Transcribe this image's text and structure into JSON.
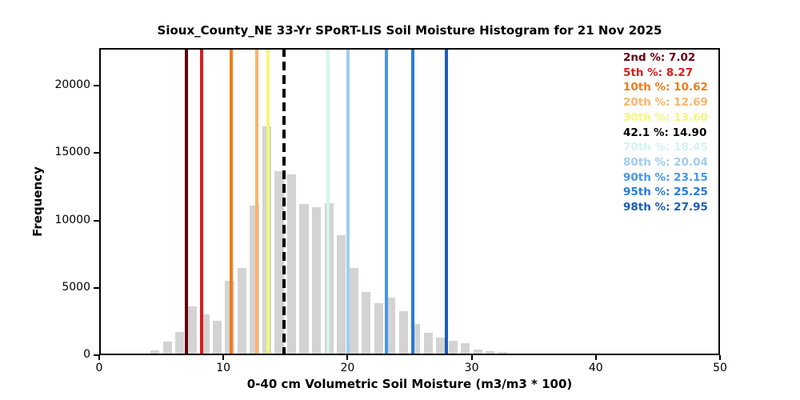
{
  "title": "Sioux_County_NE 33-Yr SPoRT-LIS Soil Moisture Histogram for 21 Nov 2025",
  "axes": {
    "x": {
      "label": "0-40 cm Volumetric Soil Moisture (m3/m3 * 100)",
      "min": 0,
      "max": 50,
      "ticks": [
        "0",
        "10",
        "20",
        "30",
        "40",
        "50"
      ],
      "tick_values": [
        0,
        10,
        20,
        30,
        40,
        50
      ]
    },
    "y": {
      "label": "Frequency",
      "min": 0,
      "max": 22800,
      "ticks": [
        "0",
        "5000",
        "10000",
        "15000",
        "20000"
      ],
      "tick_values": [
        0,
        5000,
        10000,
        15000,
        20000
      ]
    }
  },
  "chart_data": {
    "type": "bar",
    "subtype": "histogram",
    "bar_color": "#d3d3d3",
    "bin_width": 1,
    "bin_starts": [
      4,
      5,
      6,
      7,
      8,
      9,
      10,
      11,
      12,
      13,
      14,
      15,
      16,
      17,
      18,
      19,
      20,
      21,
      22,
      23,
      24,
      25,
      26,
      27,
      28,
      29,
      30,
      31,
      32,
      33
    ],
    "frequencies": [
      350,
      1000,
      1700,
      3650,
      3000,
      2550,
      5500,
      6500,
      11100,
      17000,
      13650,
      13400,
      11200,
      11000,
      11300,
      8900,
      6450,
      4700,
      3850,
      4300,
      3250,
      2300,
      1650,
      1300,
      1050,
      900,
      400,
      320,
      240,
      100
    ],
    "title": "Sioux_County_NE 33-Yr SPoRT-LIS Soil Moisture Histogram for 21 Nov 2025",
    "xlabel": "0-40 cm Volumetric Soil Moisture (m3/m3 * 100)",
    "ylabel": "Frequency",
    "xlim": [
      0,
      50
    ],
    "ylim": [
      0,
      22800
    ],
    "grid": false,
    "legend_position": "upper right (inside plot, left-aligned text)",
    "percentiles": [
      {
        "label": "2nd %",
        "value": "7.02",
        "x": 7.02,
        "color": "#67000d",
        "style": "solid"
      },
      {
        "label": "5th %",
        "value": "8.27",
        "x": 8.27,
        "color": "#dc1c1c",
        "style": "solid"
      },
      {
        "label": "10th %",
        "value": "10.62",
        "x": 10.62,
        "color": "#f07c1b",
        "style": "solid"
      },
      {
        "label": "20th %",
        "value": "12.69",
        "x": 12.69,
        "color": "#fcb469",
        "style": "solid"
      },
      {
        "label": "30th %",
        "value": "13.60",
        "x": 13.6,
        "color": "#f5f778",
        "style": "solid"
      },
      {
        "label": "42.1 %",
        "value": "14.90",
        "x": 14.9,
        "color": "#000000",
        "style": "dashed"
      },
      {
        "label": "70th %",
        "value": "18.45",
        "x": 18.45,
        "color": "#d5f3f1",
        "style": "solid"
      },
      {
        "label": "80th %",
        "value": "20.04",
        "x": 20.04,
        "color": "#9fcdf0",
        "style": "solid"
      },
      {
        "label": "90th %",
        "value": "23.15",
        "x": 23.15,
        "color": "#4897e5",
        "style": "solid"
      },
      {
        "label": "95th %",
        "value": "25.25",
        "x": 25.25,
        "color": "#2a79d6",
        "style": "solid"
      },
      {
        "label": "98th %",
        "value": "27.95",
        "x": 27.95,
        "color": "#1b5cb8",
        "style": "solid"
      }
    ]
  }
}
